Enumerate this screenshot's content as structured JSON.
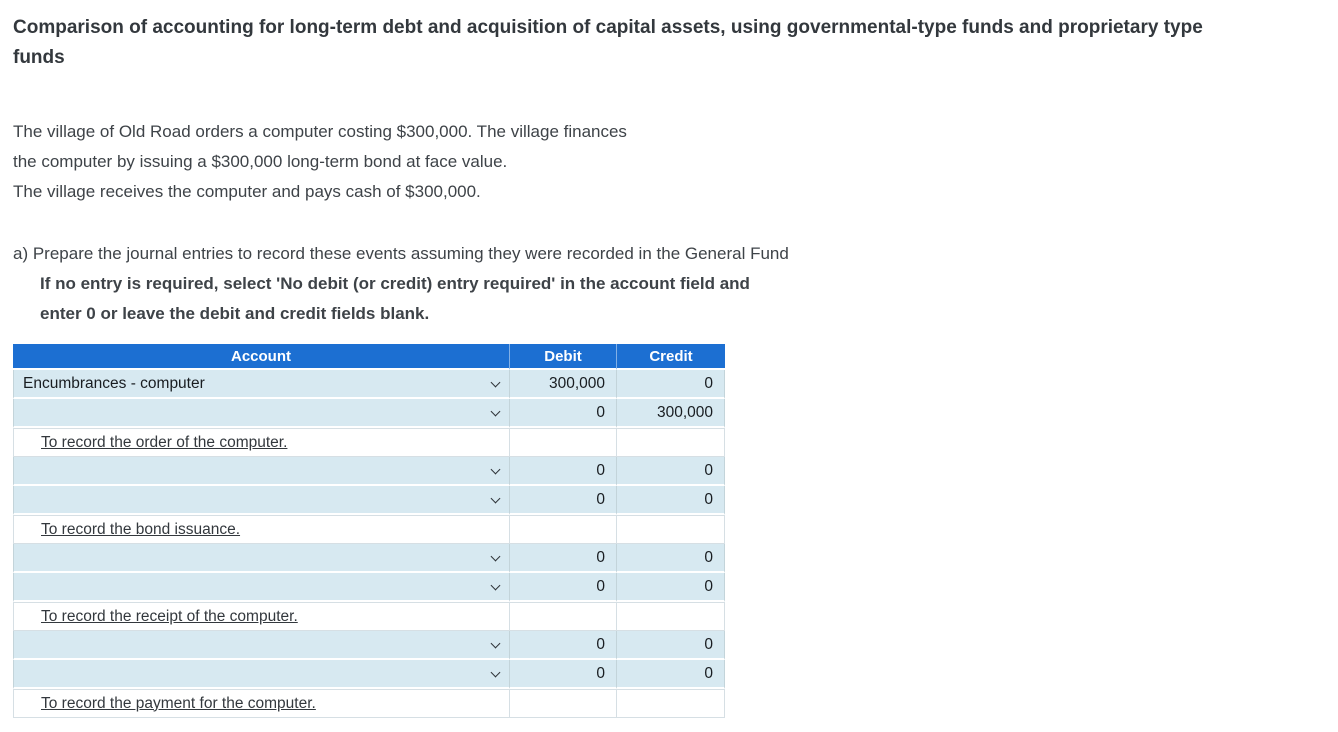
{
  "page": {
    "title_lines": [
      "Comparison of accounting for long-term debt and acquisition of capital assets, using governmental-type funds and proprietary type",
      "funds"
    ],
    "scenario_lines": [
      "The village of Old Road orders a computer costing $300,000. The village finances",
      "the computer by issuing a $300,000 long-term bond at face value.",
      "The village receives the computer and pays cash of $300,000."
    ],
    "part_a_label": "a) Prepare the journal entries to record these events assuming they were recorded in the General Fund",
    "part_a_note_lines": [
      "If no entry is required, select 'No debit (or credit) entry required' in the account field and",
      "enter 0 or leave the debit and credit fields blank."
    ]
  },
  "colors": {
    "header_bg": "#1c6fd2",
    "header_text": "#ffffff",
    "row_bg": "#d7e9f1",
    "row_border": "#c3d4da",
    "memo_border": "#d6dfe4",
    "body_text": "#3e4348",
    "cell_text": "#191d21"
  },
  "icons": {
    "account_dropdown": "chevron-down"
  },
  "table": {
    "headers": [
      "Account",
      "Debit",
      "Credit"
    ],
    "rows": [
      {
        "type": "entry",
        "account": "Encumbrances - computer",
        "debit": "300,000",
        "credit": "0"
      },
      {
        "type": "entry",
        "account": "",
        "debit": "0",
        "credit": "300,000"
      },
      {
        "type": "memo",
        "text": "To record the order of the computer."
      },
      {
        "type": "entry",
        "account": "",
        "debit": "0",
        "credit": "0"
      },
      {
        "type": "entry",
        "account": "",
        "debit": "0",
        "credit": "0"
      },
      {
        "type": "memo",
        "text": "To record the bond issuance."
      },
      {
        "type": "entry",
        "account": "",
        "debit": "0",
        "credit": "0"
      },
      {
        "type": "entry",
        "account": "",
        "debit": "0",
        "credit": "0"
      },
      {
        "type": "memo",
        "text": "To record the receipt of the computer."
      },
      {
        "type": "entry",
        "account": "",
        "debit": "0",
        "credit": "0"
      },
      {
        "type": "entry",
        "account": "",
        "debit": "0",
        "credit": "0"
      },
      {
        "type": "memo",
        "text": "To record the payment for the computer."
      }
    ]
  }
}
